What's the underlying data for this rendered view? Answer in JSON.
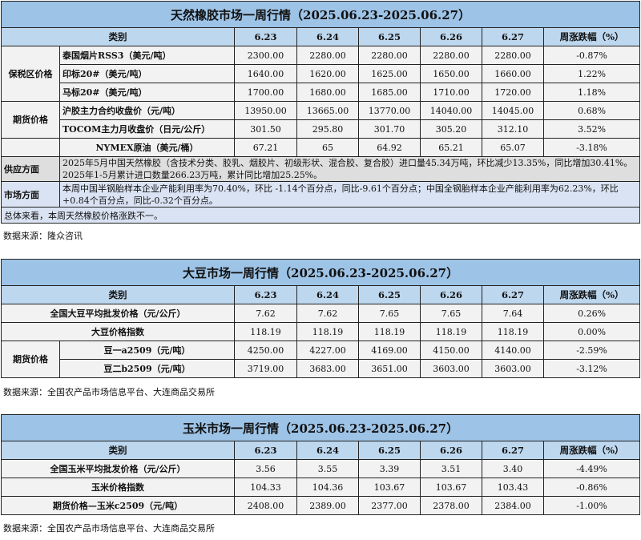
{
  "dates": [
    "6.23",
    "6.24",
    "6.25",
    "6.26",
    "6.27"
  ],
  "category_label": "类别",
  "change_label": "周涨跌幅（%）",
  "rubber": {
    "title": "天然橡胶市场一周行情（2025.06.23-2025.06.27）",
    "group_bonded": "保税区价格",
    "group_futures": "期货价格",
    "rows": [
      {
        "name": "泰国烟片RSS3（美元/吨）",
        "values": [
          "2300.00",
          "2280.00",
          "2280.00",
          "2280.00",
          "2280.00"
        ],
        "change": "-0.87%"
      },
      {
        "name": "印标20#（美元/吨）",
        "values": [
          "1640.00",
          "1620.00",
          "1625.00",
          "1650.00",
          "1660.00"
        ],
        "change": "1.22%"
      },
      {
        "name": "马标20#（美元/吨）",
        "values": [
          "1700.00",
          "1680.00",
          "1685.00",
          "1710.00",
          "1720.00"
        ],
        "change": "1.18%"
      },
      {
        "name": "沪胶主力合约收盘价（元/吨）",
        "values": [
          "13950.00",
          "13665.00",
          "13770.00",
          "14040.00",
          "14045.00"
        ],
        "change": "0.68%"
      },
      {
        "name": "TOCOM主力月收盘价（日元/公斤）",
        "values": [
          "301.50",
          "295.80",
          "301.70",
          "305.20",
          "312.10"
        ],
        "change": "3.52%"
      },
      {
        "name": "NYMEX原油（美元/桶）",
        "values": [
          "67.21",
          "65",
          "64.92",
          "65.21",
          "65.07"
        ],
        "change": "-3.18%"
      }
    ],
    "supply_label": "供应方面",
    "supply_text": "2025年5月中国天然橡胶（含技术分类、胶乳、烟胶片、初级形状、混合胶、复合胶）进口量45.34万吨，环比减少13.35%，同比增加30.41%。2025年1-5月累计进口数量266.23万吨，累计同比增加25.25%。",
    "market_label": "市场方面",
    "market_text": "本周中国半钢胎样本企业产能利用率为70.40%，环比 -1.14个百分点，同比-9.61个百分点；中国全钢胎样本企业产能利用率为62.23%，环比+0.84个百分点，同比-0.32个百分点。",
    "summary": "总体来看，本周天然橡胶价格涨跌不一。",
    "source": "数据来源：隆众咨讯"
  },
  "soybean": {
    "title": "大豆市场一周行情（2025.06.23-2025.06.27）",
    "group_futures": "期货价格",
    "rows": [
      {
        "name": "全国大豆平均批发价格（元/公斤）",
        "values": [
          "7.62",
          "7.62",
          "7.65",
          "7.65",
          "7.64"
        ],
        "change": "0.26%"
      },
      {
        "name": "大豆价格指数",
        "values": [
          "118.19",
          "118.19",
          "118.19",
          "118.19",
          "118.19"
        ],
        "change": "0.00%"
      },
      {
        "name": "豆一a2509（元/吨）",
        "values": [
          "4250.00",
          "4227.00",
          "4169.00",
          "4150.00",
          "4140.00"
        ],
        "change": "-2.59%"
      },
      {
        "name": "豆二b2509（元/吨）",
        "values": [
          "3719.00",
          "3683.00",
          "3651.00",
          "3603.00",
          "3603.00"
        ],
        "change": "-3.12%"
      }
    ],
    "source": "数据来源：全国农产品市场信息平台、大连商品交易所"
  },
  "corn": {
    "title": "玉米市场一周行情（2025.06.23-2025.06.27）",
    "rows": [
      {
        "name": "全国玉米平均批发价格（元/公斤）",
        "values": [
          "3.56",
          "3.55",
          "3.39",
          "3.51",
          "3.40"
        ],
        "change": "-4.49%"
      },
      {
        "name": "玉米价格指数",
        "values": [
          "104.33",
          "104.36",
          "103.67",
          "103.67",
          "103.43"
        ],
        "change": "-0.86%"
      },
      {
        "name": "期货价格—玉米c2509（元/吨）",
        "values": [
          "2408.00",
          "2389.00",
          "2377.00",
          "2378.00",
          "2384.00"
        ],
        "change": "-1.00%"
      }
    ],
    "source": "数据来源：全国农产品市场信息平台、大连商品交易所"
  },
  "colors": {
    "title_bg": "#9dc3e6",
    "header_bg": "#bdd7ee",
    "row_bg": "#f2f2f2",
    "market_bg": "#dae3f3"
  }
}
